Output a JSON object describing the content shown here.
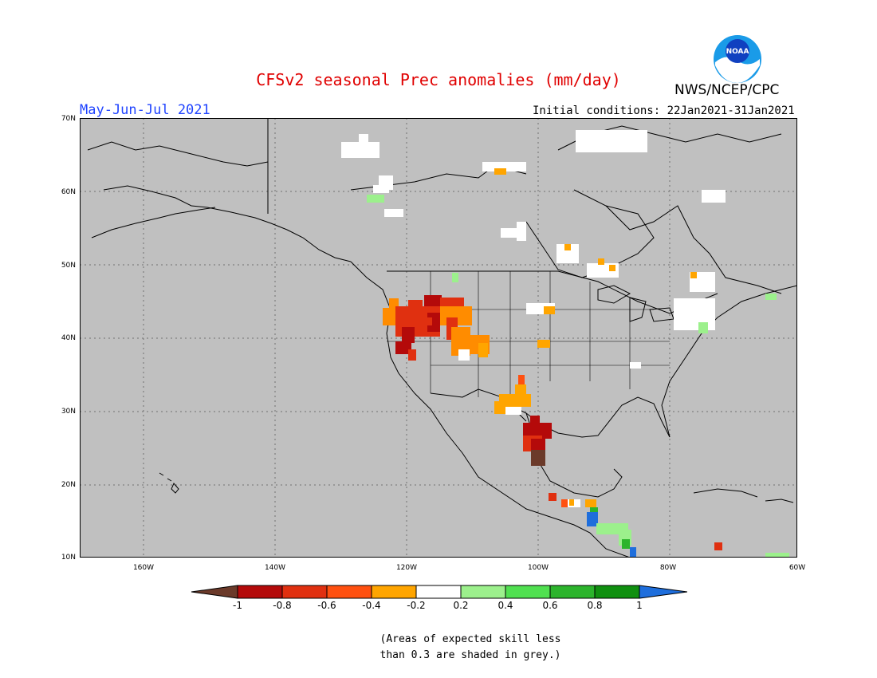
{
  "title": "CFSv2 seasonal Prec anomalies (mm/day)",
  "period": "May-Jun-Jul 2021",
  "initial_conditions": "Initial conditions: 22Jan2021-31Jan2021",
  "agency": "NWS/NCEP/CPC",
  "logo_text": "NOAA",
  "note_line1": "(Areas of expected skill less",
  "note_line2": "than 0.3 are shaded in grey.)",
  "lat_labels": [
    "70N",
    "60N",
    "50N",
    "40N",
    "30N",
    "20N",
    "10N"
  ],
  "lon_labels": [
    "160W",
    "140W",
    "120W",
    "100W",
    "80W",
    "60W"
  ],
  "colorbar": {
    "labels": [
      "-1",
      "-0.8",
      "-0.6",
      "-0.4",
      "-0.2",
      "0.2",
      "0.4",
      "0.6",
      "0.8",
      "1"
    ],
    "colors": [
      "#6b3a2a",
      "#b40a0a",
      "#e03010",
      "#ff5010",
      "#ffa500",
      "#ffffff",
      "#9cf08c",
      "#50e050",
      "#2cb42c",
      "#109010",
      "#1e6edc"
    ]
  },
  "colors": {
    "grey": "#c0c0c0",
    "land_line": "#000000",
    "grid": "#606060"
  }
}
